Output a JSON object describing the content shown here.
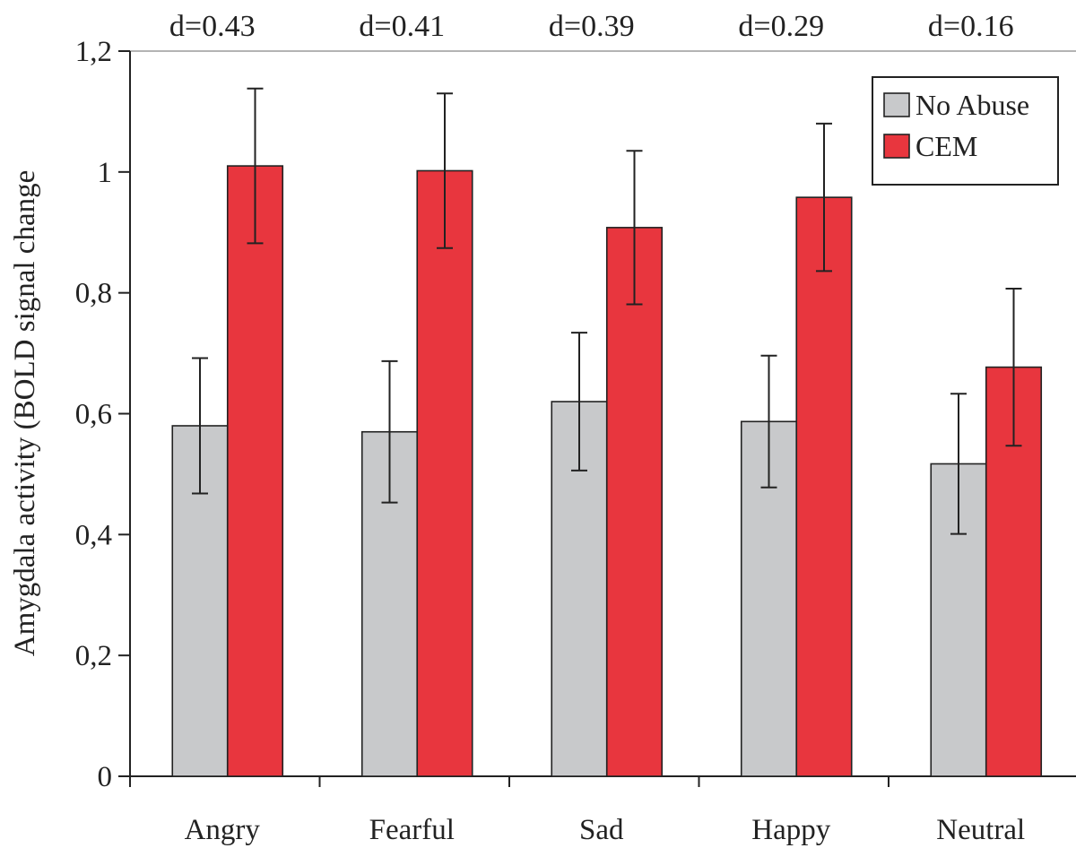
{
  "chart_data": {
    "type": "bar",
    "ylabel": "Amygdala activity (BOLD signal change",
    "ylim": [
      0,
      1.2
    ],
    "y_ticks": [
      "0",
      "0,2",
      "0,4",
      "0,6",
      "0,8",
      "1",
      "1,2"
    ],
    "categories": [
      "Angry",
      "Fearful",
      "Sad",
      "Happy",
      "Neutral"
    ],
    "effect_sizes": [
      "d=0.43",
      "d=0.41",
      "d=0.39",
      "d=0.29",
      "d=0.16"
    ],
    "series": [
      {
        "name": "No Abuse",
        "color": "#c8c9cb",
        "values": [
          0.58,
          0.57,
          0.62,
          0.587,
          0.517
        ],
        "error": [
          0.112,
          0.117,
          0.114,
          0.109,
          0.116
        ]
      },
      {
        "name": "CEM",
        "color": "#e8363e",
        "values": [
          1.01,
          1.002,
          0.908,
          0.958,
          0.677
        ],
        "error": [
          0.128,
          0.128,
          0.127,
          0.122,
          0.13
        ]
      }
    ],
    "legend_position": "top-right",
    "grid": false
  }
}
